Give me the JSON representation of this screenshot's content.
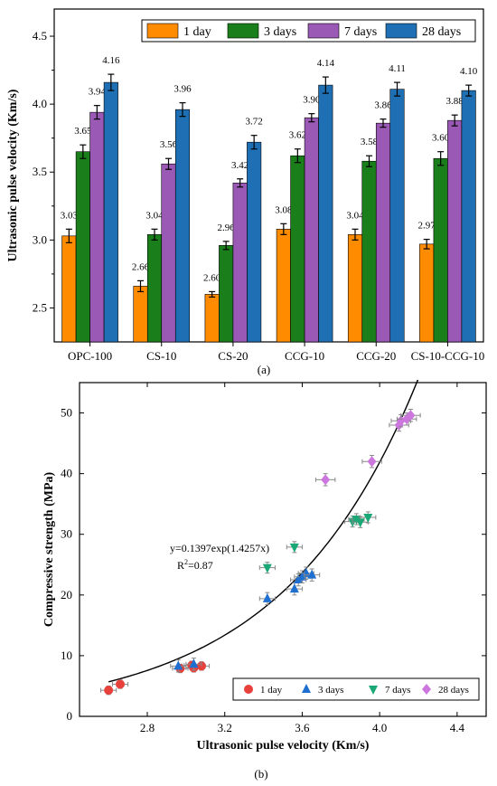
{
  "chart_data": [
    {
      "type": "bar",
      "panel_label": "(a)",
      "ylabel": "Ultrasonic pulse velocity (Km/s)",
      "xlabel": "",
      "ylim": [
        2.25,
        4.7
      ],
      "yticks": [
        "2.5",
        "3.0",
        "3.5",
        "4.0",
        "4.5"
      ],
      "categories": [
        "OPC-100",
        "CS-10",
        "CS-20",
        "CCG-10",
        "CCG-20",
        "CS-10-CCG-10"
      ],
      "legend_position": "top-right",
      "series": [
        {
          "name": "1 day",
          "color": "#ff8c00",
          "values": [
            3.03,
            2.66,
            2.6,
            3.08,
            3.04,
            2.97
          ],
          "labels": [
            "3.03",
            "2.66",
            "2.60",
            "3.08",
            "3.04",
            "2.97"
          ],
          "errors": [
            0.05,
            0.04,
            0.02,
            0.04,
            0.04,
            0.035
          ]
        },
        {
          "name": "3 days",
          "color": "#1a7f1a",
          "values": [
            3.65,
            3.04,
            2.96,
            3.62,
            3.58,
            3.6
          ],
          "labels": [
            "3.65",
            "3.04",
            "2.96",
            "3.62",
            "3.58",
            "3.60"
          ],
          "errors": [
            0.05,
            0.04,
            0.03,
            0.05,
            0.04,
            0.05
          ]
        },
        {
          "name": "7 days",
          "color": "#9b59b6",
          "values": [
            3.94,
            3.56,
            3.42,
            3.9,
            3.86,
            3.88
          ],
          "labels": [
            "3.94",
            "3.56",
            "3.42",
            "3.90",
            "3.86",
            "3.88"
          ],
          "errors": [
            0.05,
            0.04,
            0.03,
            0.03,
            0.03,
            0.04
          ]
        },
        {
          "name": "28 days",
          "color": "#1f6fb5",
          "values": [
            4.16,
            3.96,
            3.72,
            4.14,
            4.11,
            4.1
          ],
          "labels": [
            "4.16",
            "3.96",
            "3.72",
            "4.14",
            "4.11",
            "4.10"
          ],
          "errors": [
            0.06,
            0.05,
            0.05,
            0.06,
            0.05,
            0.04
          ]
        }
      ]
    },
    {
      "type": "scatter",
      "panel_label": "(b)",
      "xlabel": "Ultrasonic pulse velocity (Km/s)",
      "ylabel": "Compressive strength (MPa)",
      "xlim": [
        2.45,
        4.55
      ],
      "ylim": [
        0,
        55
      ],
      "xticks": [
        2.8,
        3.2,
        3.6,
        4.0,
        4.4
      ],
      "xtick_labels": [
        "2.8",
        "3.2",
        "3.6",
        "4.0",
        "4.4"
      ],
      "yticks": [
        0,
        10,
        20,
        30,
        40,
        50
      ],
      "ytick_labels": [
        "0",
        "10",
        "20",
        "30",
        "40",
        "50"
      ],
      "fit": {
        "a": 0.1397,
        "b": 1.4257,
        "x_range": [
          2.6,
          4.25
        ],
        "equation": "y=0.1397exp(1.4257x)",
        "r2_prefix": "R",
        "r2_sup": "2",
        "r2_value": "=0.87"
      },
      "legend_position": "bottom-right",
      "series": [
        {
          "name": "1 day",
          "color": "#e8413c",
          "marker": "circle",
          "points": [
            [
              2.6,
              4.3
            ],
            [
              2.66,
              5.3
            ],
            [
              2.97,
              7.9
            ],
            [
              3.03,
              8.4
            ],
            [
              3.04,
              8.0
            ],
            [
              3.08,
              8.3
            ]
          ],
          "xerr": 0.04,
          "yerr": 0.7
        },
        {
          "name": "3 days",
          "color": "#1f6fd0",
          "marker": "triangle-up",
          "points": [
            [
              2.96,
              8.3
            ],
            [
              3.04,
              8.6
            ],
            [
              3.42,
              19.4
            ],
            [
              3.56,
              21.0
            ],
            [
              3.58,
              22.5
            ],
            [
              3.6,
              23.0
            ],
            [
              3.62,
              23.6
            ],
            [
              3.65,
              23.3
            ]
          ],
          "xerr": 0.04,
          "yerr": 1.0
        },
        {
          "name": "7 days",
          "color": "#1aa876",
          "marker": "triangle-down",
          "points": [
            [
              3.42,
              24.5
            ],
            [
              3.56,
              27.9
            ],
            [
              3.86,
              32.1
            ],
            [
              3.88,
              32.5
            ],
            [
              3.9,
              32.0
            ],
            [
              3.94,
              32.8
            ]
          ],
          "xerr": 0.04,
          "yerr": 0.9
        },
        {
          "name": "28 days",
          "color": "#cc77dd",
          "marker": "diamond",
          "points": [
            [
              3.72,
              39.0
            ],
            [
              3.96,
              42.0
            ],
            [
              4.1,
              48.0
            ],
            [
              4.11,
              48.7
            ],
            [
              4.14,
              49.0
            ],
            [
              4.16,
              49.6
            ]
          ],
          "xerr": 0.05,
          "yerr": 1.0
        }
      ]
    }
  ]
}
